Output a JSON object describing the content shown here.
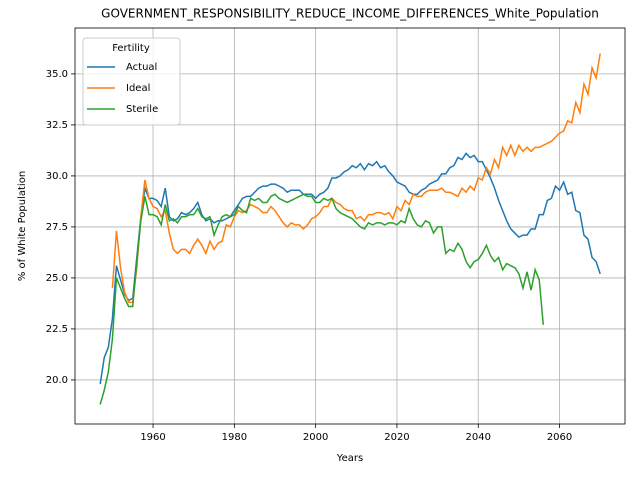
{
  "chart_data": {
    "type": "line",
    "title": "GOVERNMENT_RESPONSIBILITY_REDUCE_INCOME_DIFFERENCES_White_Population",
    "x_label": "Years",
    "y_label": "% of White Population",
    "legend_title": "Fertility",
    "legend": "upper left",
    "grid": true,
    "x": [
      1947,
      1948,
      1949,
      1950,
      1951,
      1952,
      1953,
      1954,
      1955,
      1956,
      1957,
      1958,
      1959,
      1960,
      1961,
      1962,
      1963,
      1964,
      1965,
      1966,
      1967,
      1968,
      1969,
      1970,
      1971,
      1972,
      1973,
      1974,
      1975,
      1976,
      1977,
      1978,
      1979,
      1980,
      1981,
      1982,
      1983,
      1984,
      1985,
      1986,
      1987,
      1988,
      1989,
      1990,
      1991,
      1992,
      1993,
      1994,
      1995,
      1996,
      1997,
      1998,
      1999,
      2000,
      2001,
      2002,
      2003,
      2004,
      2005,
      2006,
      2007,
      2008,
      2009,
      2010,
      2011,
      2012,
      2013,
      2014,
      2015,
      2016,
      2017,
      2018,
      2019,
      2020,
      2021,
      2022,
      2023,
      2024,
      2025,
      2026,
      2027,
      2028,
      2029,
      2030,
      2031,
      2032,
      2033,
      2034,
      2035,
      2036,
      2037,
      2038,
      2039,
      2040,
      2041,
      2042,
      2043,
      2044,
      2045,
      2046,
      2047,
      2048,
      2049,
      2050,
      2051,
      2052,
      2053,
      2054,
      2055,
      2056,
      2057,
      2058,
      2059,
      2060,
      2061,
      2062,
      2063,
      2064,
      2065,
      2066,
      2067,
      2068,
      2069,
      2070
    ],
    "series": [
      {
        "name": "Actual",
        "color": "#1f77b4",
        "values": [
          19.8,
          21.1,
          21.6,
          23.0,
          25.6,
          24.9,
          24.2,
          23.9,
          24.0,
          26.0,
          28.0,
          29.4,
          28.9,
          28.9,
          28.8,
          28.5,
          29.4,
          28.0,
          27.8,
          27.9,
          28.2,
          28.1,
          28.2,
          28.4,
          28.7,
          28.1,
          27.8,
          27.9,
          27.7,
          27.8,
          27.8,
          27.9,
          28.0,
          28.3,
          28.6,
          28.9,
          29.0,
          29.0,
          29.2,
          29.4,
          29.5,
          29.5,
          29.6,
          29.6,
          29.5,
          29.4,
          29.2,
          29.3,
          29.3,
          29.3,
          29.1,
          29.1,
          29.1,
          28.9,
          29.1,
          29.2,
          29.4,
          29.9,
          29.9,
          30.0,
          30.2,
          30.3,
          30.5,
          30.4,
          30.6,
          30.3,
          30.6,
          30.5,
          30.7,
          30.4,
          30.5,
          30.2,
          30.0,
          29.7,
          29.6,
          29.5,
          29.2,
          29.1,
          29.1,
          29.3,
          29.4,
          29.6,
          29.7,
          29.8,
          30.1,
          30.1,
          30.4,
          30.5,
          30.9,
          30.8,
          31.1,
          30.9,
          31.0,
          30.7,
          30.7,
          30.3,
          29.9,
          29.4,
          28.8,
          28.3,
          27.8,
          27.4,
          27.2,
          27.0,
          27.1,
          27.1,
          27.4,
          27.4,
          28.1,
          28.1,
          28.8,
          28.9,
          29.5,
          29.3,
          29.7,
          29.1,
          29.2,
          28.3,
          28.2,
          27.1,
          26.9,
          26.0,
          25.8,
          25.2
        ]
      },
      {
        "name": "Ideal",
        "color": "#ff7f0e",
        "values": [
          null,
          null,
          null,
          24.5,
          27.3,
          25.5,
          24.3,
          23.8,
          23.8,
          25.5,
          28.0,
          29.8,
          28.9,
          28.5,
          28.4,
          28.0,
          28.3,
          27.2,
          26.4,
          26.2,
          26.4,
          26.4,
          26.2,
          26.6,
          26.9,
          26.6,
          26.2,
          26.8,
          26.4,
          26.7,
          26.8,
          27.6,
          27.5,
          28.0,
          28.3,
          28.2,
          28.3,
          28.6,
          28.5,
          28.4,
          28.2,
          28.2,
          28.5,
          28.3,
          28.0,
          27.7,
          27.5,
          27.7,
          27.6,
          27.6,
          27.4,
          27.6,
          27.9,
          28.0,
          28.2,
          28.5,
          28.5,
          28.9,
          28.7,
          28.6,
          28.4,
          28.3,
          28.3,
          27.9,
          28.0,
          27.8,
          28.1,
          28.1,
          28.2,
          28.2,
          28.1,
          28.2,
          27.9,
          28.5,
          28.3,
          28.8,
          28.6,
          29.1,
          29.0,
          29.0,
          29.2,
          29.3,
          29.3,
          29.3,
          29.4,
          29.2,
          29.2,
          29.1,
          29.0,
          29.4,
          29.2,
          29.5,
          29.3,
          29.9,
          29.8,
          30.4,
          30.1,
          30.8,
          30.4,
          31.4,
          31.0,
          31.5,
          31.0,
          31.5,
          31.2,
          31.4,
          31.2,
          31.4,
          31.4,
          31.5,
          31.6,
          31.7,
          31.9,
          32.1,
          32.2,
          32.7,
          32.6,
          33.6,
          33.1,
          34.5,
          34.0,
          35.3,
          34.8,
          36.0
        ]
      },
      {
        "name": "Sterile",
        "color": "#2ca02c",
        "values": [
          18.8,
          19.5,
          20.4,
          22.0,
          25.0,
          24.5,
          24.0,
          23.6,
          23.6,
          25.8,
          27.8,
          29.0,
          28.1,
          28.1,
          28.0,
          27.6,
          28.6,
          27.8,
          27.9,
          27.7,
          28.0,
          28.0,
          28.1,
          28.1,
          28.4,
          28.0,
          27.9,
          28.0,
          27.1,
          27.6,
          28.0,
          28.1,
          28.0,
          28.1,
          28.5,
          28.3,
          28.2,
          28.9,
          28.8,
          28.9,
          28.7,
          28.7,
          29.0,
          29.1,
          28.9,
          28.8,
          28.7,
          28.8,
          28.9,
          29.0,
          29.1,
          29.0,
          29.0,
          28.7,
          28.7,
          28.9,
          28.8,
          28.9,
          28.4,
          28.2,
          28.1,
          28.0,
          27.9,
          27.7,
          27.5,
          27.4,
          27.7,
          27.6,
          27.7,
          27.7,
          27.6,
          27.7,
          27.7,
          27.6,
          27.8,
          27.7,
          28.4,
          27.9,
          27.6,
          27.5,
          27.8,
          27.7,
          27.2,
          27.5,
          27.5,
          26.2,
          26.4,
          26.3,
          26.7,
          26.4,
          25.8,
          25.5,
          25.8,
          25.9,
          26.2,
          26.6,
          26.1,
          25.8,
          26.0,
          25.4,
          25.7,
          25.6,
          25.5,
          25.2,
          24.5,
          25.3,
          24.4,
          25.4,
          24.9,
          22.7,
          null,
          null,
          null,
          null,
          null,
          null,
          null,
          null,
          null,
          null,
          null,
          null,
          null,
          null
        ]
      }
    ],
    "xlim": [
      1940.8,
      2076.1
    ],
    "ylim": [
      17.84,
      37.25
    ],
    "xticks": [
      1960,
      1980,
      2000,
      2020,
      2040,
      2060
    ],
    "yticks": [
      {
        "value": 20,
        "label": "20.0"
      },
      22.5,
      {
        "value": 25,
        "label": "25.0"
      },
      27.5,
      {
        "value": 30,
        "label": "30.0"
      },
      32.5,
      {
        "value": 35,
        "label": "35.0"
      }
    ]
  }
}
